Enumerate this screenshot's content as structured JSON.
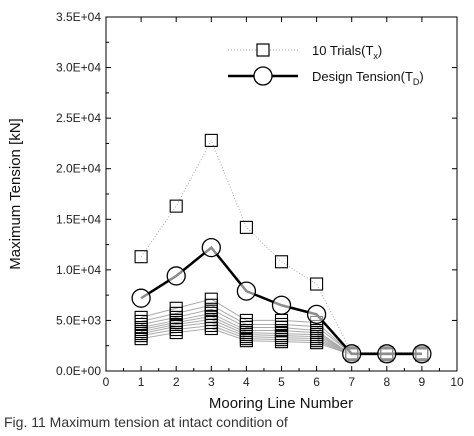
{
  "chart_data": {
    "type": "line",
    "xlabel": "Mooring Line Number",
    "ylabel": "Maximum Tension [kN]",
    "xlim": [
      0,
      10
    ],
    "ylim": [
      0,
      35000
    ],
    "xticks": [
      "0",
      "1",
      "2",
      "3",
      "4",
      "5",
      "6",
      "7",
      "8",
      "9",
      "10"
    ],
    "yticks": [
      "0.0E+00",
      "5.0E+03",
      "1.0E+04",
      "1.5E+04",
      "2.0E+04",
      "2.5E+04",
      "3.0E+04",
      "3.5E+04"
    ],
    "x": [
      1,
      2,
      3,
      4,
      5,
      6,
      7,
      8,
      9
    ],
    "grid": false,
    "legend_position": "top-right",
    "series": [
      {
        "name": "10 Trials(Tx)",
        "legend_main": "10 Trials(T",
        "legend_sub": "x",
        "legend_tail": ")",
        "marker": "square",
        "color": "#aaaaaa",
        "trials": [
          [
            11300,
            16300,
            22800,
            14200,
            10800,
            8600,
            1800,
            1800,
            1800
          ],
          [
            5300,
            6200,
            7100,
            5000,
            5000,
            4800,
            1700,
            1700,
            1700
          ],
          [
            4900,
            5700,
            6500,
            4600,
            4600,
            4400,
            1700,
            1700,
            1700
          ],
          [
            4600,
            5300,
            6100,
            4300,
            4300,
            4000,
            1600,
            1600,
            1600
          ],
          [
            4300,
            5000,
            5700,
            4000,
            4000,
            3800,
            1600,
            1600,
            1600
          ],
          [
            4100,
            4800,
            5400,
            3800,
            3700,
            3600,
            1600,
            1600,
            1600
          ],
          [
            3900,
            4600,
            5100,
            3600,
            3500,
            3400,
            1600,
            1600,
            1600
          ],
          [
            3700,
            4400,
            4800,
            3400,
            3300,
            3200,
            1600,
            1600,
            1600
          ],
          [
            3500,
            4100,
            4500,
            3200,
            3100,
            3000,
            1600,
            1600,
            1600
          ],
          [
            3200,
            3800,
            4200,
            3000,
            2900,
            2800,
            1600,
            1600,
            1600
          ]
        ]
      },
      {
        "name": "Design Tension(TD)",
        "legend_main": "Design Tension(T",
        "legend_sub": "D",
        "legend_tail": ")",
        "marker": "circle",
        "color": "#000000",
        "values": [
          7200,
          9400,
          12200,
          7900,
          6500,
          5600,
          1700,
          1700,
          1700
        ]
      }
    ]
  },
  "caption": "Fig. 11  Maximum tension at intact condition of"
}
